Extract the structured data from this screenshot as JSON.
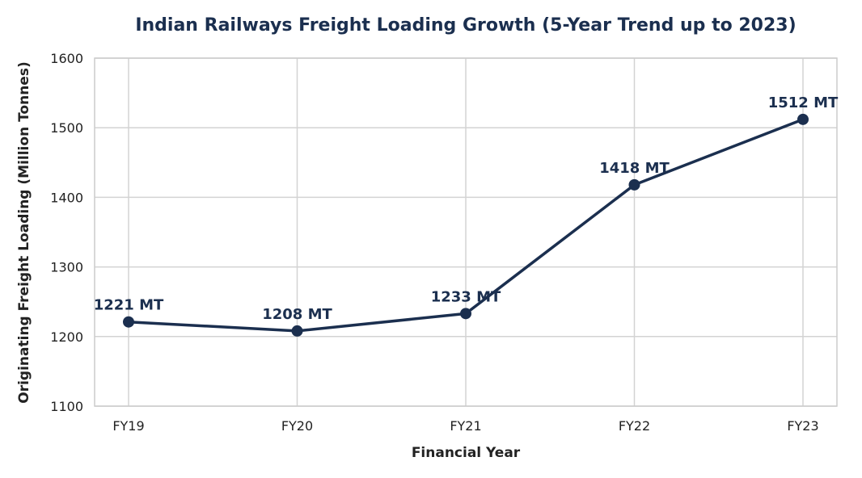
{
  "chart_data": {
    "type": "line",
    "title": "Indian Railways Freight Loading Growth (5-Year Trend up to 2023)",
    "xlabel": "Financial Year",
    "ylabel": "Originating Freight Loading (Million Tonnes)",
    "categories": [
      "FY19",
      "FY20",
      "FY21",
      "FY22",
      "FY23"
    ],
    "series": [
      {
        "values": [
          1221,
          1208,
          1233,
          1418,
          1512
        ],
        "data_labels": [
          "1221 MT",
          "1208 MT",
          "1233 MT",
          "1418 MT",
          "1512 MT"
        ]
      }
    ],
    "ylim": [
      1100,
      1600
    ],
    "yticks": [
      1100,
      1200,
      1300,
      1400,
      1500,
      1600
    ],
    "ytick_labels": [
      "1100",
      "1200",
      "1300",
      "1400",
      "1500",
      "1600"
    ],
    "grid": true,
    "legend": "none",
    "colors": {
      "line": "#1b2f4f",
      "title": "#1b2f4f",
      "data_label": "#1b2f4f",
      "grid": "#d3d3d3",
      "axis_text": "#222222"
    }
  }
}
